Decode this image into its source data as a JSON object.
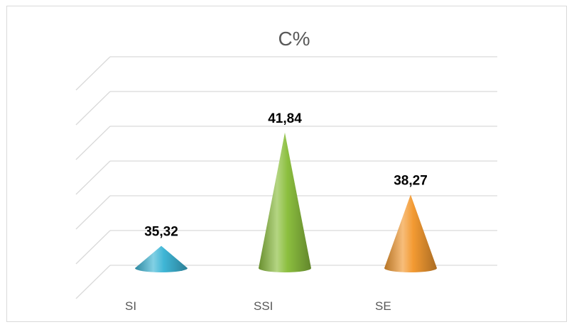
{
  "chart_data": {
    "type": "bar",
    "shape": "cone-3d",
    "title": "C%",
    "xlabel": "",
    "ylabel": "",
    "categories": [
      "SI",
      "SSI",
      "SE"
    ],
    "values": [
      35.32,
      41.84,
      38.27
    ],
    "value_labels": [
      "35,32",
      "41,84",
      "38,27"
    ],
    "colors": [
      "#3fb6d6",
      "#8cbf3f",
      "#f39a32"
    ],
    "ylim": [
      32,
      44
    ],
    "grid": true,
    "legend": "none"
  }
}
